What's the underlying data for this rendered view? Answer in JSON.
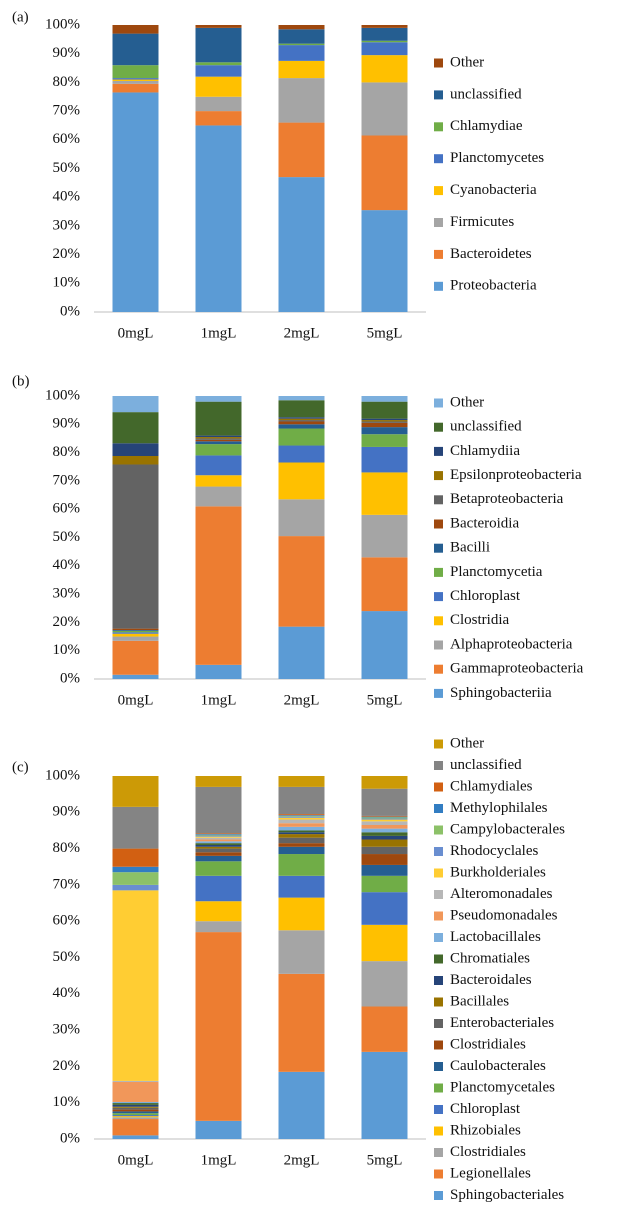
{
  "chart_data": [
    {
      "type": "bar",
      "stacked": true,
      "title": "(a)",
      "categories": [
        "0mgL",
        "1mgL",
        "2mgL",
        "5mgL"
      ],
      "ylim": [
        0,
        100
      ],
      "yticks": [
        {
          "value": 0,
          "label": "0%"
        },
        {
          "value": 10,
          "label": "10%"
        },
        {
          "value": 20,
          "label": "20%"
        },
        {
          "value": 30,
          "label": "30%"
        },
        {
          "value": 40,
          "label": "40%"
        },
        {
          "value": 50,
          "label": "50%"
        },
        {
          "value": 60,
          "label": "60%"
        },
        {
          "value": 70,
          "label": "70%"
        },
        {
          "value": 80,
          "label": "80%"
        },
        {
          "value": 90,
          "label": "90%"
        },
        {
          "value": 100,
          "label": "100%"
        }
      ],
      "series": [
        {
          "name": "Proteobacteria",
          "color": "#5b9bd5",
          "values": [
            76.5,
            65,
            47,
            35.5
          ]
        },
        {
          "name": "Bacteroidetes",
          "color": "#ed7d31",
          "values": [
            3,
            5,
            19,
            26
          ]
        },
        {
          "name": "Firmicutes",
          "color": "#a5a5a5",
          "values": [
            1,
            5,
            15.5,
            18.5
          ]
        },
        {
          "name": "Cyanobacteria",
          "color": "#ffc000",
          "values": [
            0.5,
            7,
            6,
            9.5
          ]
        },
        {
          "name": "Planctomycetes",
          "color": "#4472c4",
          "values": [
            0.5,
            4,
            5.5,
            4.5
          ]
        },
        {
          "name": "Chlamydiae",
          "color": "#70ad47",
          "values": [
            4.5,
            1,
            0.5,
            0.5
          ]
        },
        {
          "name": "unclassified",
          "color": "#255e91",
          "values": [
            11,
            12,
            5,
            4.5
          ]
        },
        {
          "name": "Other",
          "color": "#9e480e",
          "values": [
            3,
            1,
            1.5,
            1
          ]
        }
      ]
    },
    {
      "type": "bar",
      "stacked": true,
      "title": "(b)",
      "categories": [
        "0mgL",
        "1mgL",
        "2mgL",
        "5mgL"
      ],
      "ylim": [
        0,
        100
      ],
      "yticks": [
        {
          "value": 0,
          "label": "0%"
        },
        {
          "value": 10,
          "label": "10%"
        },
        {
          "value": 20,
          "label": "20%"
        },
        {
          "value": 30,
          "label": "30%"
        },
        {
          "value": 40,
          "label": "40%"
        },
        {
          "value": 50,
          "label": "50%"
        },
        {
          "value": 60,
          "label": "60%"
        },
        {
          "value": 70,
          "label": "70%"
        },
        {
          "value": 80,
          "label": "80%"
        },
        {
          "value": 90,
          "label": "90%"
        },
        {
          "value": 100,
          "label": "100%"
        }
      ],
      "series": [
        {
          "name": "Sphingobacteriia",
          "color": "#5b9bd5",
          "values": [
            1.5,
            5,
            18.5,
            24
          ]
        },
        {
          "name": "Gammaproteobacteria",
          "color": "#ed7d31",
          "values": [
            12,
            56,
            32,
            19
          ]
        },
        {
          "name": "Alphaproteobacteria",
          "color": "#a5a5a5",
          "values": [
            1.5,
            7,
            13,
            15
          ]
        },
        {
          "name": "Clostridia",
          "color": "#ffc000",
          "values": [
            1,
            4,
            13,
            15
          ]
        },
        {
          "name": "Chloroplast",
          "color": "#4472c4",
          "values": [
            0.5,
            7,
            6,
            9
          ]
        },
        {
          "name": "Planctomycetia",
          "color": "#70ad47",
          "values": [
            0.5,
            4,
            6,
            4.5
          ]
        },
        {
          "name": "Bacilli",
          "color": "#255e91",
          "values": [
            0.3,
            1,
            1.5,
            2.5
          ]
        },
        {
          "name": "Bacteroidia",
          "color": "#9e480e",
          "values": [
            0.5,
            0.5,
            1,
            1.5
          ]
        },
        {
          "name": "Betaproteobacteria",
          "color": "#636363",
          "values": [
            58,
            0.5,
            0.5,
            0.5
          ]
        },
        {
          "name": "Epsilonproteobacteria",
          "color": "#997300",
          "values": [
            3,
            0.5,
            0.5,
            0.5
          ]
        },
        {
          "name": "Chlamydiia",
          "color": "#264478",
          "values": [
            4.5,
            0.5,
            0.5,
            0.5
          ]
        },
        {
          "name": "unclassified",
          "color": "#43682b",
          "values": [
            11,
            12,
            6,
            6
          ]
        },
        {
          "name": "Other",
          "color": "#7cafdd",
          "values": [
            5.7,
            2,
            1.5,
            2
          ]
        }
      ]
    },
    {
      "type": "bar",
      "stacked": true,
      "title": "(c)",
      "categories": [
        "0mgL",
        "1mgL",
        "2mgL",
        "5mgL"
      ],
      "ylim": [
        0,
        100
      ],
      "yticks": [
        {
          "value": 0,
          "label": "0%"
        },
        {
          "value": 10,
          "label": "10%"
        },
        {
          "value": 20,
          "label": "20%"
        },
        {
          "value": 30,
          "label": "30%"
        },
        {
          "value": 40,
          "label": "40%"
        },
        {
          "value": 50,
          "label": "50%"
        },
        {
          "value": 60,
          "label": "60%"
        },
        {
          "value": 70,
          "label": "70%"
        },
        {
          "value": 80,
          "label": "80%"
        },
        {
          "value": 90,
          "label": "90%"
        },
        {
          "value": 100,
          "label": "100%"
        }
      ],
      "series": [
        {
          "name": "Sphingobacteriales",
          "color": "#5b9bd5",
          "values": [
            1,
            5,
            18.5,
            24
          ]
        },
        {
          "name": "Legionellales",
          "color": "#ed7d31",
          "values": [
            4.5,
            52,
            27,
            12.5
          ]
        },
        {
          "name": "Clostridiales",
          "color": "#a5a5a5",
          "values": [
            0.5,
            3,
            12,
            12.5
          ]
        },
        {
          "name": "Rhizobiales",
          "color": "#ffc000",
          "values": [
            0.3,
            5.5,
            9,
            10
          ]
        },
        {
          "name": "Chloroplast",
          "color": "#4472c4",
          "values": [
            0.3,
            7,
            6,
            9
          ]
        },
        {
          "name": "Planctomycetales",
          "color": "#70ad47",
          "values": [
            0.5,
            4,
            6,
            4.5
          ]
        },
        {
          "name": "Caulobacterales",
          "color": "#255e91",
          "values": [
            0.5,
            1.5,
            2,
            3
          ]
        },
        {
          "name": "Clostridiales",
          "color": "#9e480e",
          "values": [
            0.5,
            1,
            1,
            3
          ]
        },
        {
          "name": "Enterobacteriales",
          "color": "#636363",
          "values": [
            0.5,
            1,
            1.5,
            2
          ]
        },
        {
          "name": "Bacillales",
          "color": "#997300",
          "values": [
            0.3,
            0.5,
            1,
            2
          ]
        },
        {
          "name": "Bacteroidales",
          "color": "#264478",
          "values": [
            0.5,
            0.5,
            0.5,
            1
          ]
        },
        {
          "name": "Chromatiales",
          "color": "#43682b",
          "values": [
            0.5,
            0.5,
            0.5,
            1
          ]
        },
        {
          "name": "Lactobacillales",
          "color": "#7cafdd",
          "values": [
            0.3,
            0.5,
            1,
            1
          ]
        },
        {
          "name": "Pseudomonadales",
          "color": "#f1975a",
          "values": [
            5.5,
            0.5,
            1,
            1
          ]
        },
        {
          "name": "Alteromonadales",
          "color": "#b7b7b7",
          "values": [
            0.3,
            0.5,
            1,
            1
          ]
        },
        {
          "name": "Burkholderiales",
          "color": "#ffcd33",
          "values": [
            52.5,
            0.3,
            0.5,
            0.5
          ]
        },
        {
          "name": "Rhodocyclales",
          "color": "#698ed0",
          "values": [
            1.5,
            0.3,
            0.3,
            0.3
          ]
        },
        {
          "name": "Campylobacterales",
          "color": "#8cc168",
          "values": [
            3.5,
            0.2,
            0.2,
            0.3
          ]
        },
        {
          "name": "Methylophilales",
          "color": "#327dc2",
          "values": [
            1.5,
            0.2,
            0.2,
            0.2
          ]
        },
        {
          "name": "Chlamydiales",
          "color": "#d26012",
          "values": [
            5,
            0.2,
            0.3,
            0.2
          ]
        },
        {
          "name": "unclassified",
          "color": "#848484",
          "values": [
            11.5,
            12.8,
            7.5,
            7.5
          ]
        },
        {
          "name": "Other",
          "color": "#cc9a06",
          "values": [
            8.5,
            3,
            3,
            3.5
          ]
        }
      ]
    }
  ]
}
